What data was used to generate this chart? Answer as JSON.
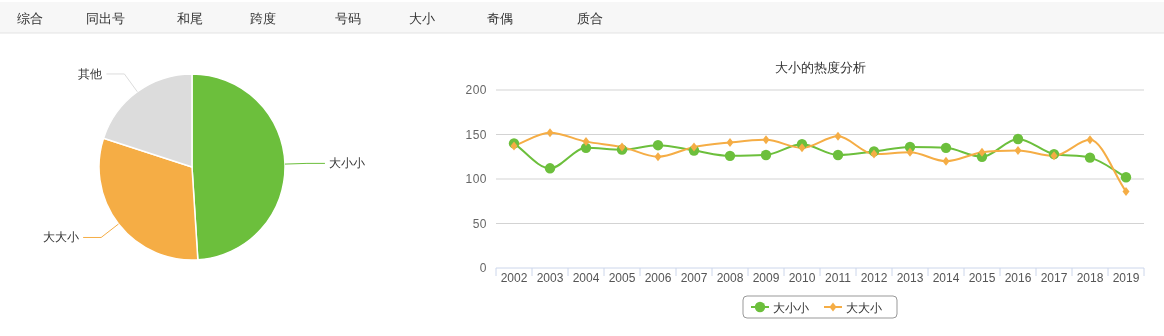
{
  "chart_data": [
    {
      "type": "other",
      "categories": [
        "综合",
        "同出号",
        "和尾",
        "跨度",
        "号码",
        "大小",
        "奇偶",
        "质合"
      ]
    },
    {
      "type": "pie",
      "categories": [
        "大小小",
        "大大小",
        "其他"
      ],
      "values": [
        49,
        31,
        20
      ],
      "colors": [
        "#6cbf3c",
        "#f5ad45",
        "#dcdcdc"
      ]
    },
    {
      "type": "line",
      "title": "大小的热度分析",
      "categories": [
        "2002",
        "2003",
        "2004",
        "2005",
        "2006",
        "2007",
        "2008",
        "2009",
        "2010",
        "2011",
        "2012",
        "2013",
        "2014",
        "2015",
        "2016",
        "2017",
        "2018",
        "2019"
      ],
      "series": [
        {
          "name": "大小小",
          "color": "#6cbf3c",
          "marker": "circle",
          "values": [
            140,
            112,
            135,
            133,
            138,
            132,
            126,
            127,
            139,
            127,
            131,
            136,
            135,
            125,
            145,
            128,
            124,
            102
          ]
        },
        {
          "name": "大大小",
          "color": "#f5ad45",
          "marker": "diamond",
          "values": [
            137,
            152,
            142,
            136,
            125,
            136,
            141,
            144,
            135,
            148,
            128,
            130,
            120,
            130,
            132,
            126,
            144,
            86
          ]
        }
      ],
      "ylim": [
        0,
        200
      ],
      "yticks": [
        0,
        50,
        100,
        150,
        200
      ],
      "grid": "y",
      "legend": "bottom"
    }
  ]
}
